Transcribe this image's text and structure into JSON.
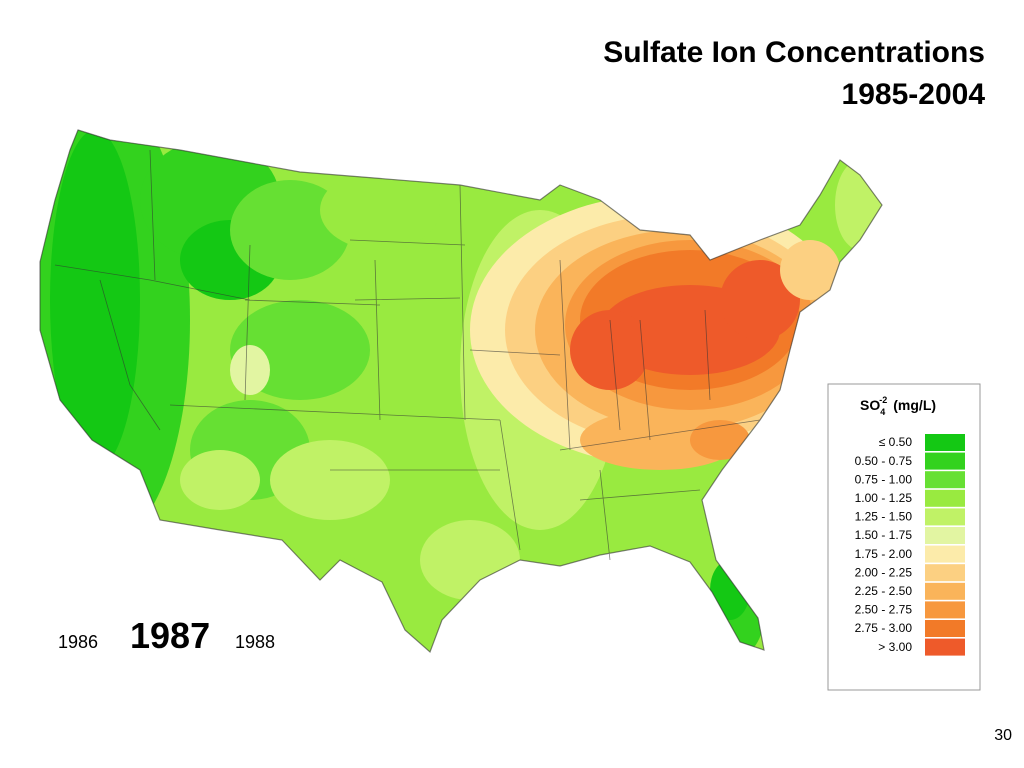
{
  "header": {
    "title": "Sulfate Ion Concentrations",
    "subtitle": "1985-2004"
  },
  "legend": {
    "title": {
      "base": "SO",
      "subscript": "4",
      "superscript": "-2",
      "unit": "(mg/L)"
    },
    "items": [
      {
        "label": "≤ 0.50",
        "color": "#14c814"
      },
      {
        "label": "0.50 - 0.75",
        "color": "#33d21e"
      },
      {
        "label": "0.75 - 1.00",
        "color": "#66e033"
      },
      {
        "label": "1.00 - 1.25",
        "color": "#99ea40"
      },
      {
        "label": "1.25 - 1.50",
        "color": "#c0f266"
      },
      {
        "label": "1.50 - 1.75",
        "color": "#e2f5a2"
      },
      {
        "label": "1.75 - 2.00",
        "color": "#fcebaa"
      },
      {
        "label": "2.00 - 2.25",
        "color": "#fcd082"
      },
      {
        "label": "2.25 - 2.50",
        "color": "#fab45a"
      },
      {
        "label": "2.50 - 2.75",
        "color": "#f7983e"
      },
      {
        "label": "2.75 - 3.00",
        "color": "#f27a28"
      },
      {
        "label": "> 3.00",
        "color": "#ee5a2a"
      }
    ]
  },
  "years": {
    "previous": "1986",
    "current": "1987",
    "next": "1988"
  },
  "page_number": "30"
}
